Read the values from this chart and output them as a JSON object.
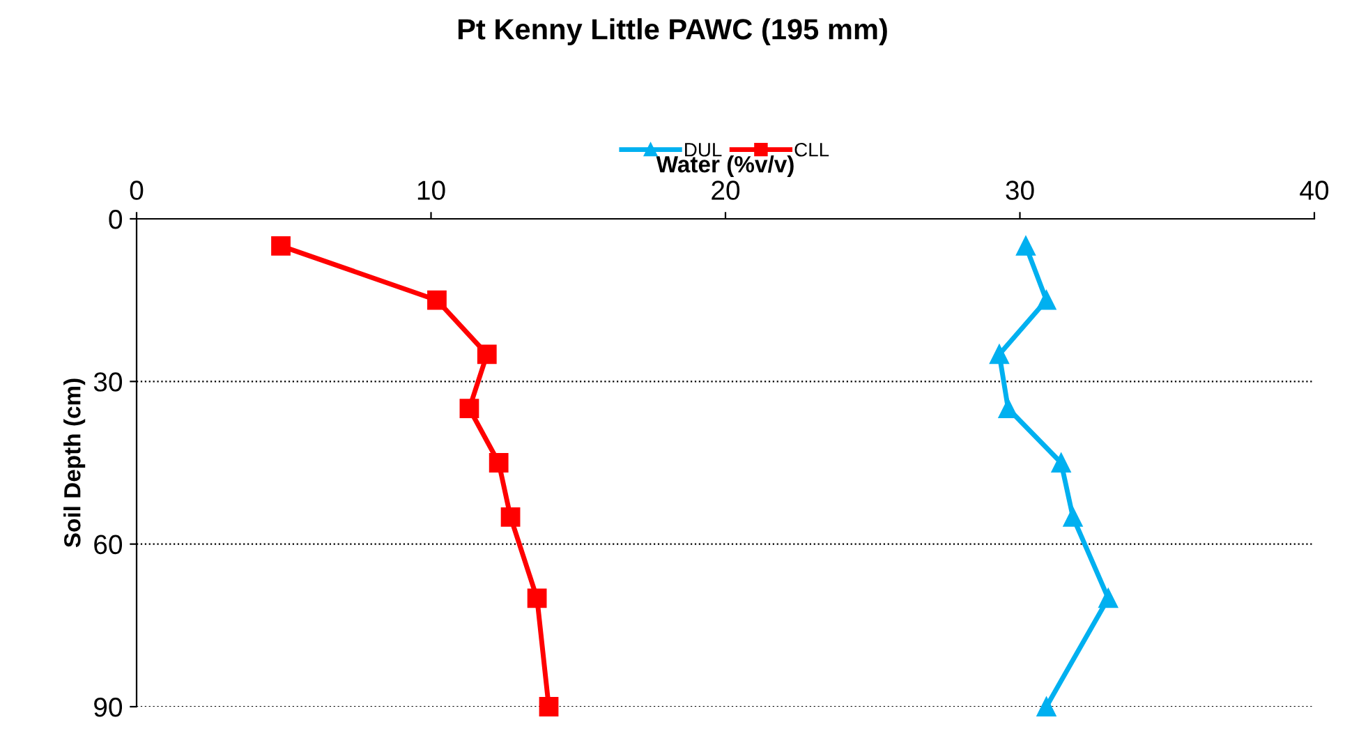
{
  "chart_data": {
    "type": "line",
    "title": "Pt Kenny Little PAWC (195 mm)",
    "xlabel": "Water (%v/v)",
    "ylabel": "Soil Depth (cm)",
    "series": [
      {
        "name": "DUL",
        "color": "#00b0f0",
        "marker": "triangle",
        "x": [
          30.2,
          30.9,
          29.3,
          29.6,
          31.4,
          31.8,
          33.0,
          30.9
        ],
        "values": [
          5,
          15,
          25,
          35,
          45,
          55,
          70,
          90
        ]
      },
      {
        "name": "CLL",
        "color": "#ff0000",
        "marker": "square",
        "x": [
          4.9,
          10.2,
          11.9,
          11.3,
          12.3,
          12.7,
          13.6,
          14.0
        ],
        "values": [
          5,
          15,
          25,
          35,
          45,
          55,
          70,
          90
        ]
      }
    ],
    "xlim": [
      0,
      40
    ],
    "xticks": [
      0,
      10,
      20,
      30,
      40
    ],
    "ylim": [
      90,
      0
    ],
    "yticks": [
      0,
      30,
      60,
      90
    ],
    "grid": "y",
    "legend": "top",
    "line_style": "solid"
  }
}
